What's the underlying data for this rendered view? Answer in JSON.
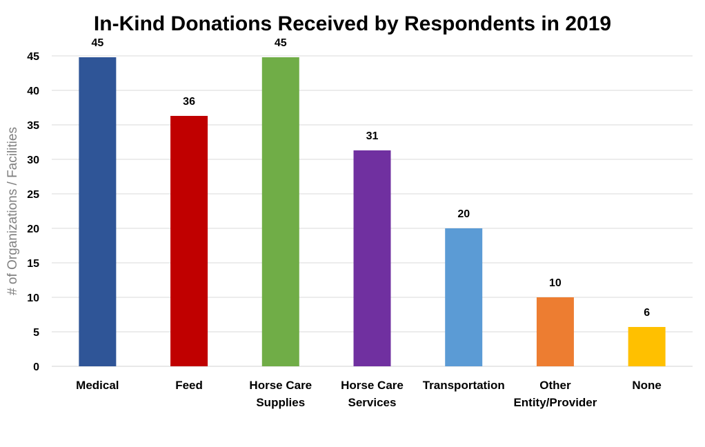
{
  "chart_data": {
    "type": "bar",
    "title": "In-Kind Donations Received by Respondents in 2019",
    "xlabel": "",
    "ylabel": "# of Organizations / Facilities",
    "ylim": [
      0,
      45
    ],
    "yticks": [
      0,
      5,
      10,
      15,
      20,
      25,
      30,
      35,
      40,
      45
    ],
    "grid": true,
    "legend": "none",
    "categories": [
      [
        "Medical"
      ],
      [
        "Feed"
      ],
      [
        "Horse Care",
        "Supplies"
      ],
      [
        "Horse Care",
        "Services"
      ],
      [
        "Transportation"
      ],
      [
        "Other",
        "Entity/Provider"
      ],
      [
        "None"
      ]
    ],
    "values": [
      45,
      36,
      45,
      31,
      20,
      10,
      6
    ],
    "plotted_values": [
      44.8,
      36.3,
      44.8,
      31.3,
      20,
      10,
      5.7
    ],
    "colors": [
      "#2F5597",
      "#C00000",
      "#70AD47",
      "#7030A0",
      "#5B9BD5",
      "#ED7D31",
      "#FFC000"
    ]
  }
}
